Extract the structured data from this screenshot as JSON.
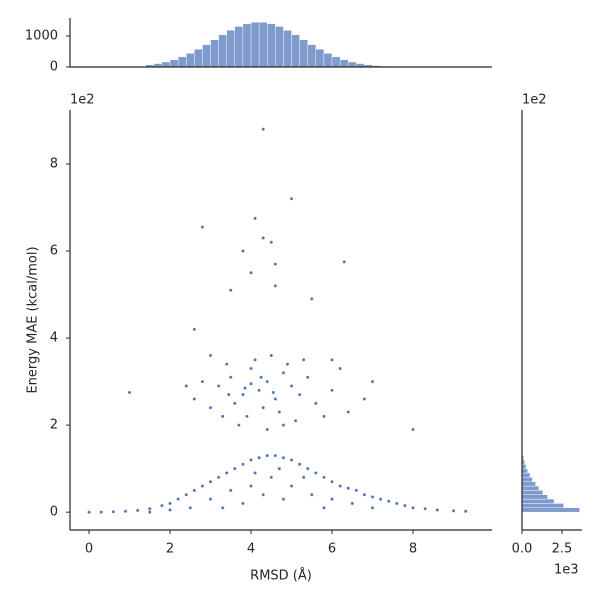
{
  "chart_data": [
    {
      "type": "scatter",
      "xlabel": "RMSD (Å)",
      "ylabel": "Energy MAE (kcal/mol)",
      "y_offset": "1e2",
      "color": "#4c72b0",
      "xlim": [
        -0.47,
        9.95
      ],
      "ylim": [
        -0.41,
        9.24
      ],
      "xticks": [
        0,
        2,
        4,
        6,
        8
      ],
      "yticks": [
        0,
        2,
        4,
        6,
        8
      ],
      "x": [
        4.3,
        5.0,
        4.1,
        2.8,
        3.8,
        4.3,
        4.5,
        4.0,
        4.6,
        6.3,
        4.6,
        3.5,
        5.5,
        2.6,
        3.0,
        1.0,
        7.0,
        8.0,
        6.0,
        3.2,
        3.5,
        3.8,
        4.0,
        4.2,
        4.4,
        4.6,
        4.8,
        5.0,
        5.2,
        3.6,
        3.9,
        4.3,
        4.7,
        5.4,
        5.6,
        3.0,
        2.8,
        6.0,
        6.4,
        3.4,
        4.1,
        4.5,
        4.9,
        5.8,
        3.7,
        4.4,
        5.1,
        2.6,
        6.8,
        4.0,
        4.25,
        3.85,
        4.55,
        3.45,
        5.3,
        2.4,
        6.2,
        3.3,
        4.8,
        0.0,
        0.3,
        0.6,
        0.9,
        1.2,
        1.5,
        1.8,
        2.0,
        2.2,
        2.4,
        2.6,
        2.8,
        3.0,
        3.2,
        3.4,
        3.6,
        3.8,
        4.0,
        4.2,
        4.4,
        4.6,
        4.8,
        5.0,
        5.2,
        5.4,
        5.6,
        5.8,
        6.0,
        6.2,
        6.4,
        6.6,
        6.8,
        7.0,
        7.2,
        7.4,
        7.6,
        7.8,
        8.0,
        8.3,
        8.6,
        9.0,
        9.3,
        2.5,
        3.0,
        3.5,
        4.0,
        4.5,
        5.0,
        5.5,
        6.0,
        6.5,
        7.0,
        3.8,
        4.3,
        4.8,
        5.3,
        3.3,
        5.8,
        4.1,
        4.7,
        1.5,
        2.0
      ],
      "values": [
        8.8,
        7.2,
        6.75,
        6.55,
        6.0,
        6.3,
        6.2,
        5.5,
        5.7,
        5.75,
        5.2,
        5.1,
        4.9,
        4.2,
        3.6,
        2.75,
        3.0,
        1.9,
        3.5,
        2.9,
        3.1,
        2.7,
        3.3,
        2.8,
        3.0,
        2.6,
        3.2,
        2.9,
        2.7,
        2.5,
        2.2,
        2.4,
        2.3,
        3.1,
        2.5,
        2.4,
        3.0,
        2.8,
        2.3,
        3.4,
        3.5,
        3.6,
        3.4,
        2.2,
        2.0,
        1.9,
        2.1,
        2.6,
        2.6,
        2.95,
        3.1,
        2.85,
        2.75,
        2.7,
        3.5,
        2.9,
        3.3,
        2.2,
        2.0,
        0.0,
        0.0,
        0.01,
        0.02,
        0.04,
        0.08,
        0.15,
        0.2,
        0.3,
        0.4,
        0.5,
        0.6,
        0.7,
        0.8,
        0.9,
        1.0,
        1.1,
        1.2,
        1.25,
        1.3,
        1.3,
        1.25,
        1.2,
        1.1,
        1.0,
        0.9,
        0.8,
        0.7,
        0.6,
        0.55,
        0.5,
        0.4,
        0.35,
        0.3,
        0.25,
        0.2,
        0.15,
        0.1,
        0.08,
        0.05,
        0.03,
        0.02,
        0.1,
        0.3,
        0.5,
        0.6,
        0.8,
        0.6,
        0.4,
        0.3,
        0.2,
        0.1,
        0.2,
        0.4,
        0.3,
        0.8,
        0.1,
        0.1,
        0.9,
        1.0,
        0.0,
        0.05
      ]
    },
    {
      "type": "histogram",
      "orientation": "vertical",
      "color": "#7f9bcd",
      "xlim": [
        -0.47,
        9.95
      ],
      "ylim": [
        0,
        1580
      ],
      "yticks": [
        0,
        1000
      ],
      "bins": [
        1.4,
        1.6,
        1.8,
        2.0,
        2.2,
        2.4,
        2.6,
        2.8,
        3.0,
        3.2,
        3.4,
        3.6,
        3.8,
        4.0,
        4.2,
        4.4,
        4.6,
        4.8,
        5.0,
        5.2,
        5.4,
        5.6,
        5.8,
        6.0,
        6.2,
        6.4,
        6.6,
        6.8,
        7.0,
        7.2,
        7.4
      ],
      "counts": [
        71,
        110,
        162,
        235,
        327,
        440,
        572,
        720,
        880,
        1037,
        1185,
        1308,
        1397,
        1444,
        1444,
        1397,
        1308,
        1185,
        1037,
        880,
        720,
        572,
        440,
        327,
        235,
        162,
        110,
        71,
        45,
        28
      ]
    },
    {
      "type": "histogram",
      "orientation": "horizontal",
      "color": "#7f9bcd",
      "y_offset": "1e2",
      "x_offset": "1e3",
      "xlim": [
        0,
        3.75
      ],
      "ylim": [
        -0.41,
        9.24
      ],
      "xticks": [
        {
          "value": 0,
          "label": "0.0"
        },
        2.5
      ],
      "bins": [
        0.0,
        0.1,
        0.2,
        0.3,
        0.4,
        0.5,
        0.6,
        0.7,
        0.8,
        0.9,
        1.0,
        1.1,
        1.2,
        1.3,
        1.4,
        1.5
      ],
      "counts": [
        3.6,
        2.6,
        2.0,
        1.6,
        1.3,
        1.05,
        0.85,
        0.65,
        0.5,
        0.35,
        0.25,
        0.16,
        0.1,
        0.05,
        0.02
      ]
    }
  ]
}
